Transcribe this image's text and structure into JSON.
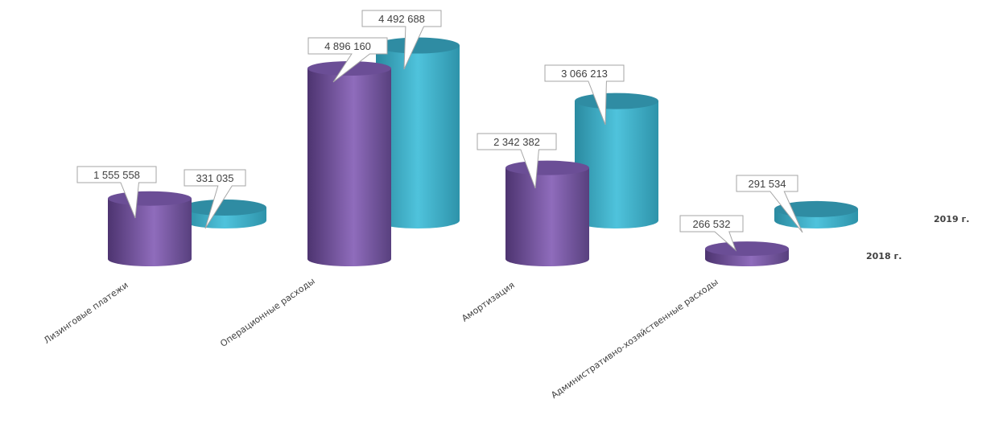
{
  "chart_data": {
    "type": "bar",
    "style": "3d-cylinder",
    "categories": [
      "Лизинговые платежи",
      "Операционные расходы",
      "Амортизация",
      "Административно-хозяйственные расходы"
    ],
    "series": [
      {
        "name": "2018 г.",
        "color": "#7E5BA8",
        "values": [
          1555558,
          4896160,
          2342382,
          266532
        ],
        "labels": [
          "1 555 558",
          "4 896 160",
          "2 342 382",
          "266 532"
        ]
      },
      {
        "name": "2019 г.",
        "color": "#3FB4CC",
        "values": [
          331035,
          4492688,
          3066213,
          291534
        ],
        "labels": [
          "331 035",
          "4 492 688",
          "3 066 213",
          "291 534"
        ]
      }
    ],
    "ylim": [
      0,
      5000000
    ],
    "grid": false,
    "legend": "right-depth-axis",
    "data_labels": "callout"
  }
}
